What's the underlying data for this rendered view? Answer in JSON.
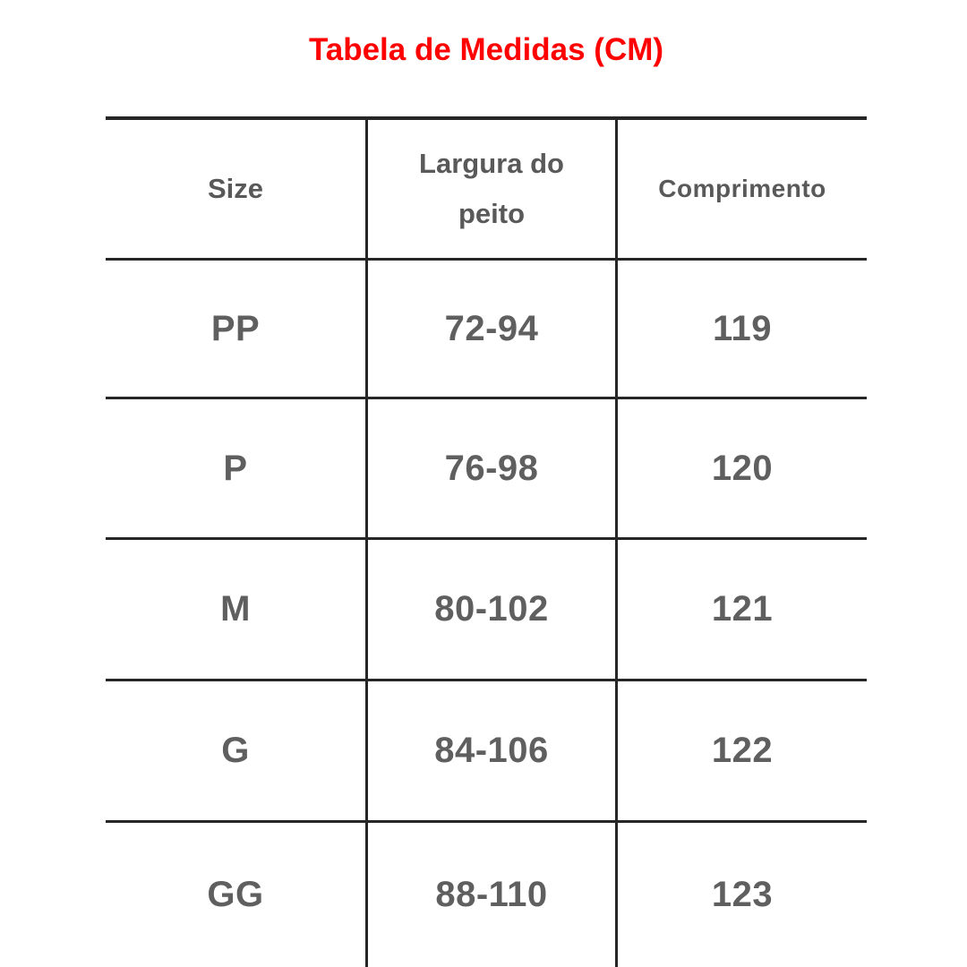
{
  "title": "Tabela de Medidas (CM)",
  "colors": {
    "title_red": "#fe0000",
    "text_gray": "#5f5f5f",
    "header_gray": "#595959",
    "grid_line": "#262626",
    "background": "#ffffff"
  },
  "chart_data": {
    "type": "table",
    "title": "Tabela de Medidas (CM)",
    "unit": "CM",
    "columns": [
      "Size",
      "Largura do peito",
      "Comprimento"
    ],
    "rows": [
      [
        "PP",
        "72-94",
        "119"
      ],
      [
        "P",
        "76-98",
        "120"
      ],
      [
        "M",
        "80-102",
        "121"
      ],
      [
        "G",
        "84-106",
        "122"
      ],
      [
        "GG",
        "88-110",
        "123"
      ]
    ],
    "layout_notes": "grid table, no outer left/right/bottom borders, bottom row cropped at image edge"
  }
}
